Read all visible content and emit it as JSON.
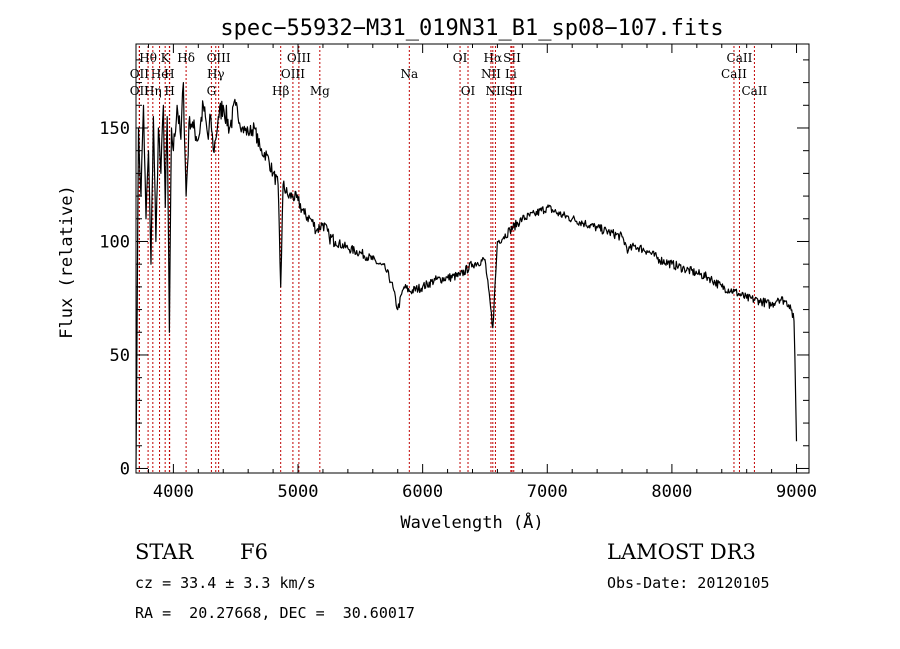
{
  "chart_data": {
    "type": "line",
    "title": "spec−55932−M31_019N31_B1_sp08−107.fits",
    "xlabel": "Wavelength (Å)",
    "ylabel": "Flux (relative)",
    "xlim": [
      3700,
      9100
    ],
    "ylim": [
      -2,
      187
    ],
    "x_ticks": [
      4000,
      5000,
      6000,
      7000,
      8000,
      9000
    ],
    "y_ticks": [
      0,
      50,
      100,
      150
    ],
    "series": [
      {
        "name": "flux",
        "x": [
          3700,
          3720,
          3740,
          3760,
          3780,
          3800,
          3820,
          3840,
          3860,
          3880,
          3900,
          3920,
          3935,
          3950,
          3968,
          3985,
          4000,
          4030,
          4060,
          4080,
          4102,
          4130,
          4160,
          4200,
          4240,
          4280,
          4300,
          4320,
          4340,
          4360,
          4400,
          4450,
          4500,
          4550,
          4600,
          4650,
          4700,
          4750,
          4800,
          4840,
          4861,
          4880,
          4920,
          4960,
          5000,
          5050,
          5100,
          5150,
          5200,
          5250,
          5300,
          5400,
          5500,
          5600,
          5700,
          5750,
          5800,
          5850,
          5900,
          6000,
          6100,
          6200,
          6300,
          6400,
          6500,
          6563,
          6600,
          6650,
          6700,
          6800,
          6900,
          7000,
          7100,
          7200,
          7300,
          7400,
          7500,
          7600,
          7650,
          7700,
          7800,
          7900,
          8000,
          8100,
          8200,
          8300,
          8400,
          8500,
          8600,
          8700,
          8800,
          8850,
          8900,
          8950,
          8980,
          9000
        ],
        "y": [
          0,
          150,
          120,
          160,
          110,
          140,
          90,
          155,
          100,
          150,
          130,
          160,
          115,
          155,
          60,
          150,
          140,
          160,
          145,
          170,
          120,
          155,
          150,
          145,
          160,
          145,
          155,
          140,
          145,
          155,
          160,
          150,
          160,
          150,
          148,
          150,
          140,
          138,
          130,
          125,
          80,
          125,
          120,
          120,
          118,
          112,
          110,
          105,
          108,
          102,
          100,
          97,
          95,
          92,
          88,
          82,
          70,
          80,
          78,
          80,
          83,
          84,
          85,
          90,
          92,
          62,
          100,
          102,
          105,
          110,
          112,
          115,
          112,
          110,
          108,
          106,
          104,
          102,
          96,
          98,
          96,
          92,
          90,
          88,
          86,
          84,
          80,
          78,
          75,
          74,
          72,
          75,
          74,
          72,
          65,
          12
        ]
      }
    ],
    "line_markers": [
      {
        "label": "Hθ",
        "wavelength": 3797,
        "row": 1
      },
      {
        "label": "OII",
        "wavelength": 3727,
        "row": 2
      },
      {
        "label": "OII",
        "wavelength": 3727,
        "row": 3
      },
      {
        "label": "He",
        "wavelength": 3889,
        "row": 2
      },
      {
        "label": "Hη",
        "wavelength": 3835,
        "row": 3
      },
      {
        "label": "K",
        "wavelength": 3934,
        "row": 1
      },
      {
        "label": "H",
        "wavelength": 3968,
        "row": 2
      },
      {
        "label": "H",
        "wavelength": 3970,
        "row": 3
      },
      {
        "label": "Hδ",
        "wavelength": 4102,
        "row": 1
      },
      {
        "label": "OIII",
        "wavelength": 4363,
        "row": 1
      },
      {
        "label": "Hγ",
        "wavelength": 4340,
        "row": 2
      },
      {
        "label": "G",
        "wavelength": 4305,
        "row": 3
      },
      {
        "label": "Hβ",
        "wavelength": 4861,
        "row": 3
      },
      {
        "label": "OIII",
        "wavelength": 5007,
        "row": 1
      },
      {
        "label": "OIII",
        "wavelength": 4959,
        "row": 2
      },
      {
        "label": "Mg",
        "wavelength": 5175,
        "row": 3
      },
      {
        "label": "Na",
        "wavelength": 5893,
        "row": 2
      },
      {
        "label": "OI",
        "wavelength": 6300,
        "row": 1
      },
      {
        "label": "OI",
        "wavelength": 6364,
        "row": 3
      },
      {
        "label": "Hα",
        "wavelength": 6563,
        "row": 1
      },
      {
        "label": "NII",
        "wavelength": 6548,
        "row": 2
      },
      {
        "label": "NII",
        "wavelength": 6584,
        "row": 3
      },
      {
        "label": "SII",
        "wavelength": 6717,
        "row": 1
      },
      {
        "label": "Li",
        "wavelength": 6708,
        "row": 2
      },
      {
        "label": "SII",
        "wavelength": 6731,
        "row": 3
      },
      {
        "label": "CaII",
        "wavelength": 8542,
        "row": 1
      },
      {
        "label": "CaII",
        "wavelength": 8498,
        "row": 2
      },
      {
        "label": "CaII",
        "wavelength": 8662,
        "row": 3
      }
    ]
  },
  "info": {
    "class_label": "STAR",
    "subclass": "F6",
    "survey": "LAMOST DR3",
    "cz": "cz = 33.4 ± 3.3 km/s",
    "obs_date": "Obs-Date: 20120105",
    "coords": "RA =  20.27668, DEC =  30.60017"
  },
  "colors": {
    "axis": "#000000",
    "line": "#000000",
    "marker": "#c00000"
  }
}
